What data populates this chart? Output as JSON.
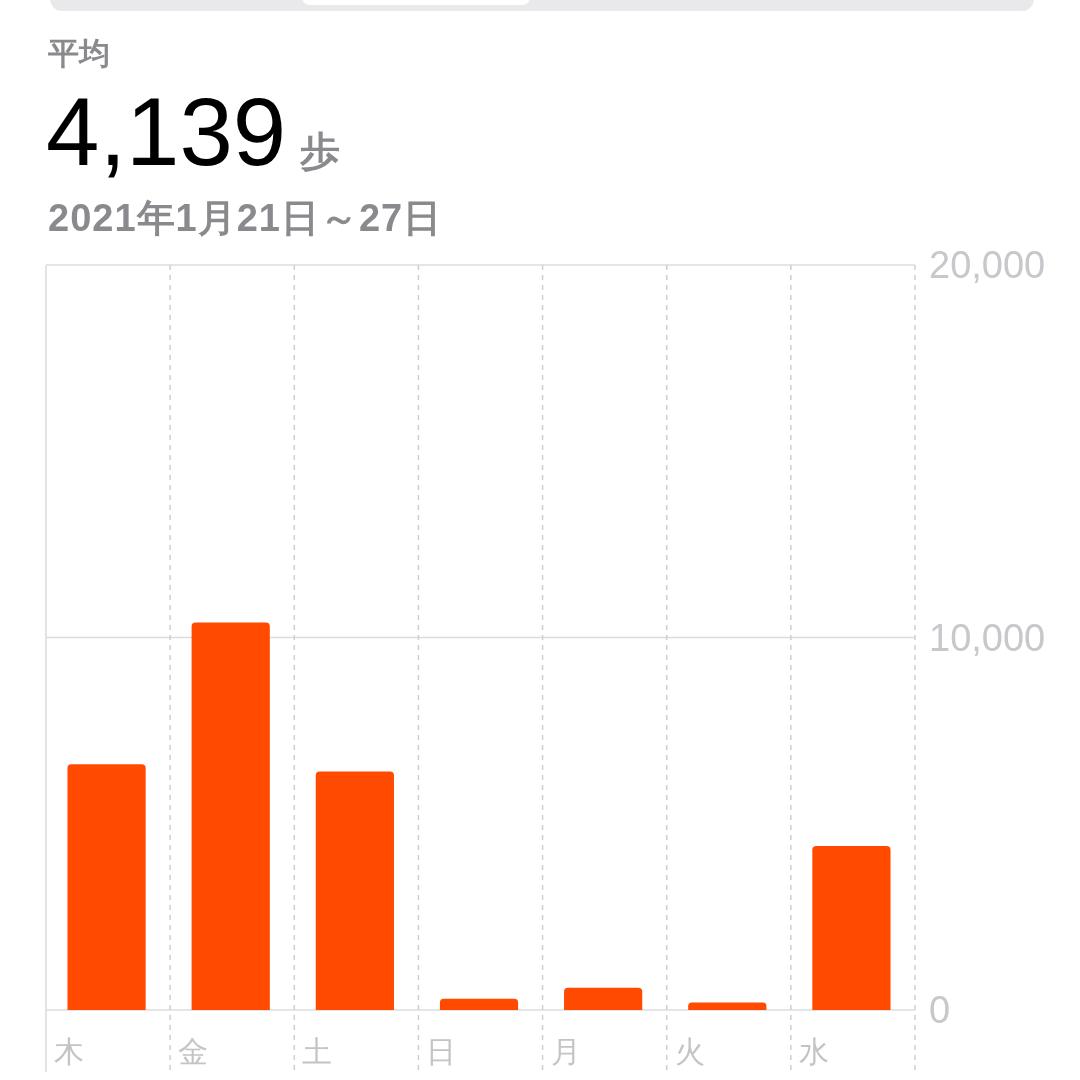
{
  "chart_data": {
    "type": "bar",
    "title": "平均",
    "subtitle": "2021年1月21日～27日",
    "annotations": [
      "4,139",
      "歩"
    ],
    "categories": [
      "木",
      "金",
      "土",
      "日",
      "月",
      "火",
      "水"
    ],
    "values": [
      6600,
      10400,
      6400,
      300,
      600,
      200,
      4400
    ],
    "color": "#ff4a00",
    "ylim": [
      0,
      20000
    ],
    "yticks": [
      0,
      {
        "value": 10000,
        "label": "10,000"
      },
      {
        "value": 20000,
        "label": "20,000"
      }
    ],
    "grid": true
  }
}
